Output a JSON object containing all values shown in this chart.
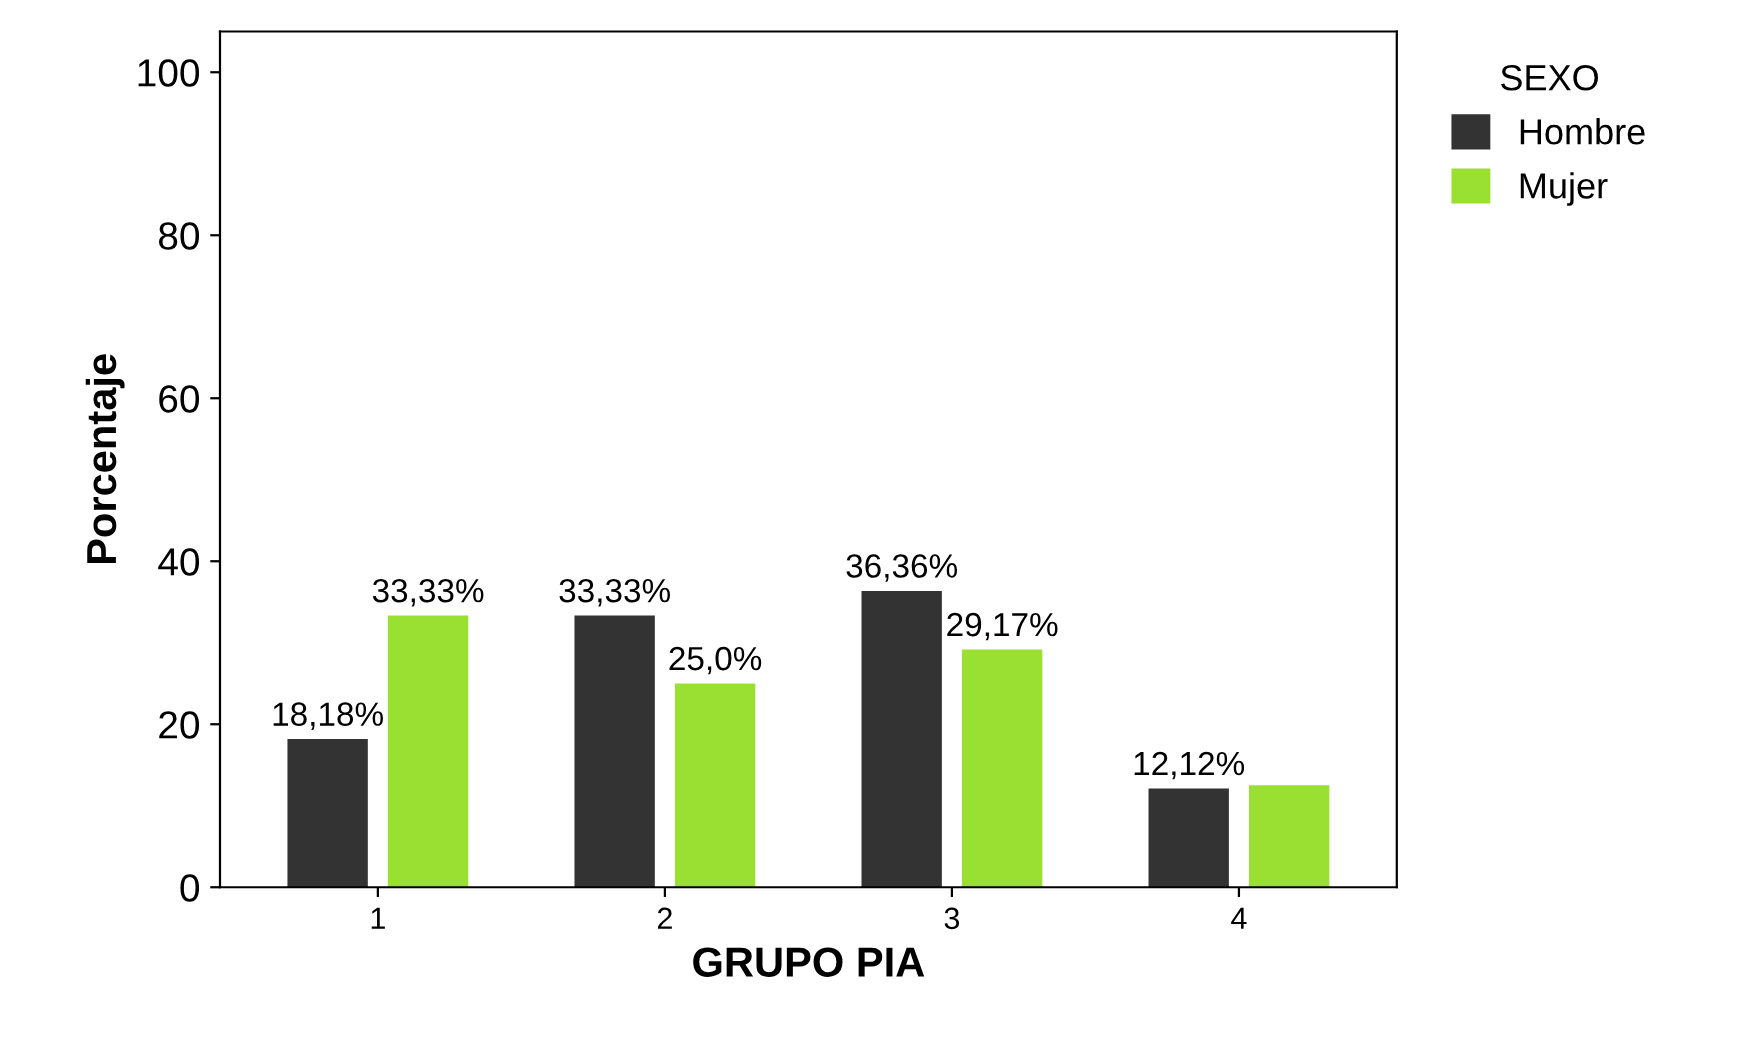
{
  "chart_data": {
    "type": "bar",
    "xlabel": "GRUPO PIA",
    "ylabel": "Porcentaje",
    "categories": [
      "1",
      "2",
      "3",
      "4"
    ],
    "series": [
      {
        "name": "Hombre",
        "color": "#333333",
        "values": [
          18.18,
          33.33,
          36.36,
          12.12
        ],
        "value_labels": [
          "18,18%",
          "33,33%",
          "36,36%",
          "12,12%"
        ]
      },
      {
        "name": "Mujer",
        "color": "#99e033",
        "values": [
          33.33,
          25.0,
          29.17,
          12.5
        ],
        "value_labels": [
          "33,33%",
          "25,0%",
          "29,17%",
          null
        ]
      }
    ],
    "ylim": [
      0,
      105
    ],
    "yticks": [
      0,
      20,
      40,
      60,
      80,
      100
    ],
    "grid": false,
    "legend": "top right",
    "legend_title": "SEXO"
  }
}
